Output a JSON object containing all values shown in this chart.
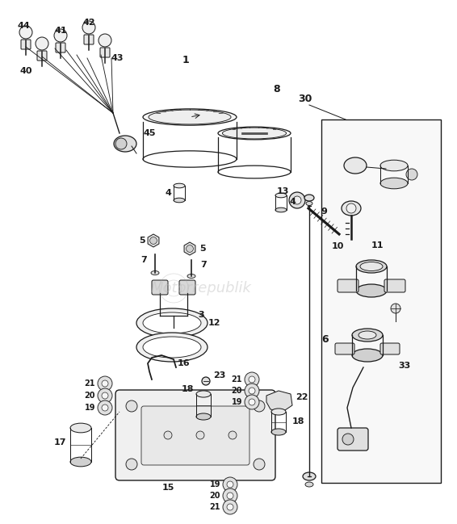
{
  "bg_color": "#ffffff",
  "line_color": "#1a1a1a",
  "figsize": [
    5.66,
    6.49
  ],
  "dpi": 100,
  "watermark": "Motorrepublik",
  "watermark_color": [
    0.75,
    0.75,
    0.75
  ]
}
